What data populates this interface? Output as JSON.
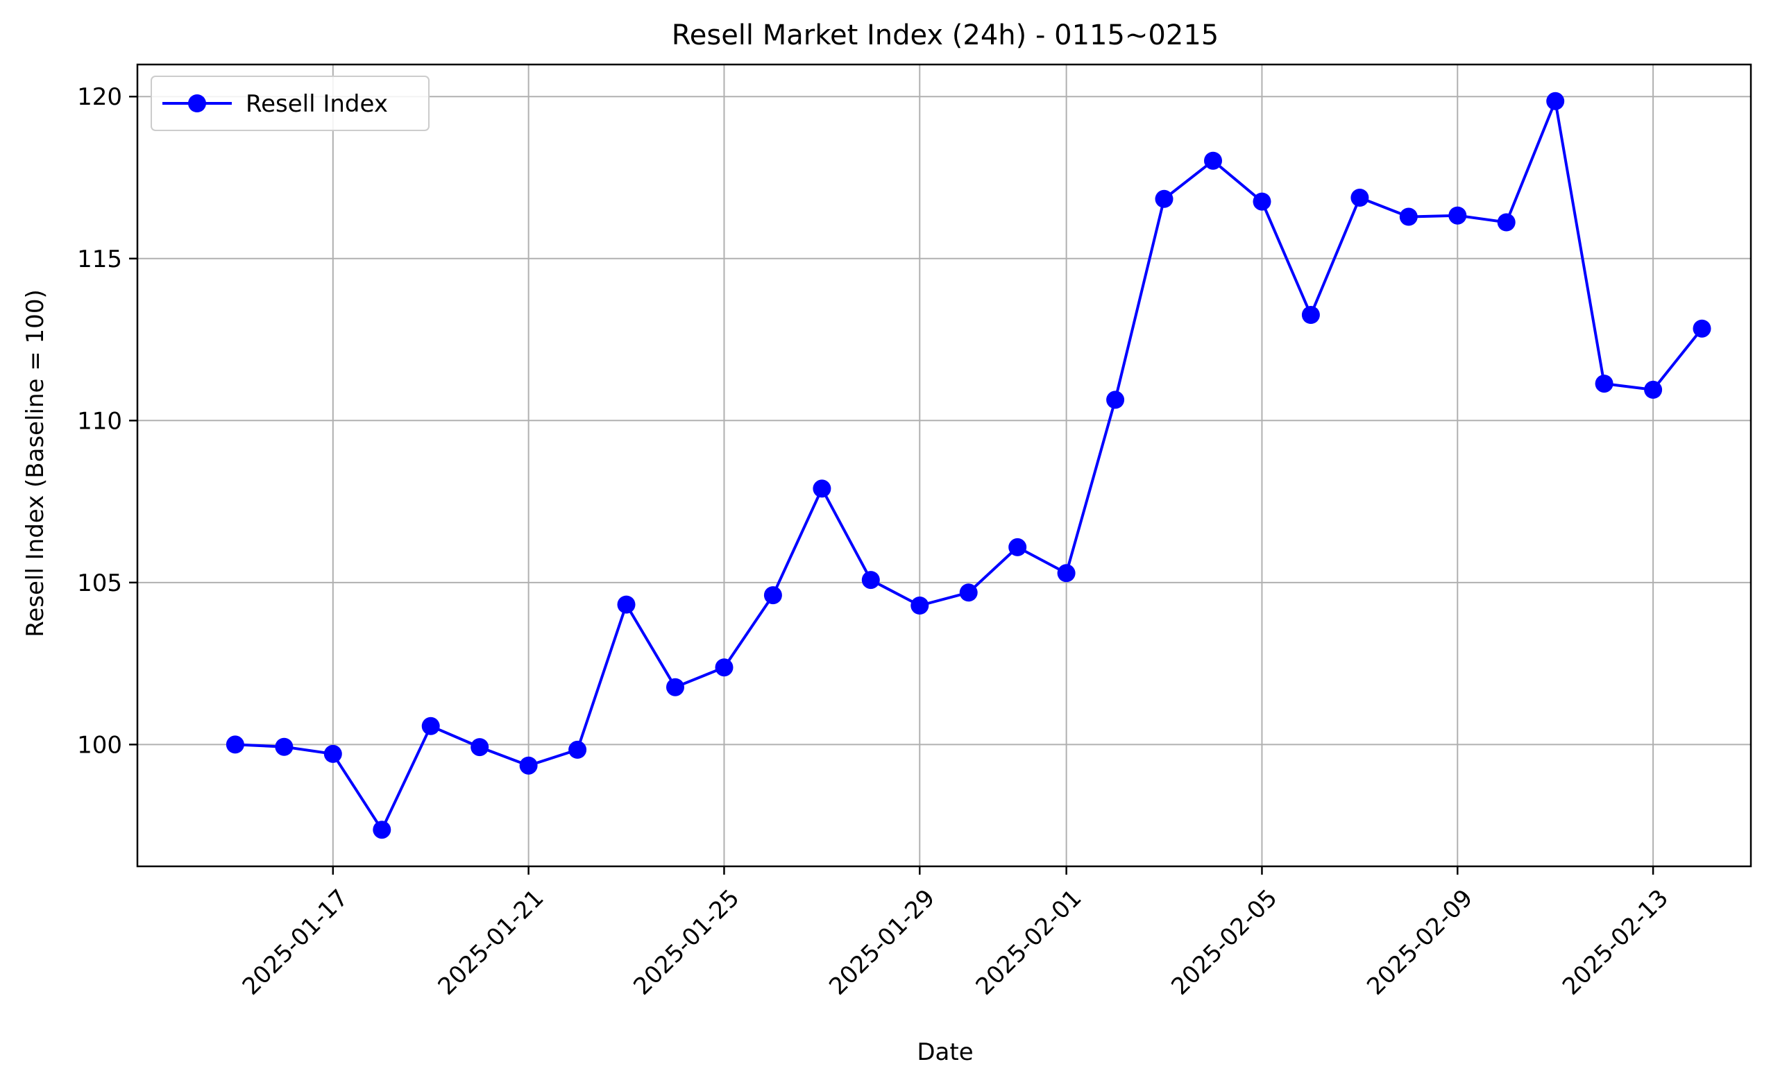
{
  "chart_data": {
    "type": "line",
    "title": "Resell Market Index (24h) - 0115~0215",
    "xlabel": "Date",
    "ylabel": "Resell Index (Baseline = 100)",
    "x": [
      "2025-01-15",
      "2025-01-16",
      "2025-01-17",
      "2025-01-18",
      "2025-01-19",
      "2025-01-20",
      "2025-01-21",
      "2025-01-22",
      "2025-01-23",
      "2025-01-24",
      "2025-01-25",
      "2025-01-26",
      "2025-01-27",
      "2025-01-28",
      "2025-01-29",
      "2025-01-30",
      "2025-01-31",
      "2025-02-01",
      "2025-02-02",
      "2025-02-03",
      "2025-02-04",
      "2025-02-05",
      "2025-02-06",
      "2025-02-07",
      "2025-02-08",
      "2025-02-09",
      "2025-02-10",
      "2025-02-11",
      "2025-02-12",
      "2025-02-13",
      "2025-02-14"
    ],
    "series": [
      {
        "name": "Resell Index",
        "color": "#0000ff",
        "marker": "circle",
        "values": [
          100.0,
          99.93,
          99.71,
          97.37,
          100.57,
          99.92,
          99.35,
          99.84,
          104.32,
          101.77,
          102.38,
          104.61,
          107.9,
          105.08,
          104.29,
          104.69,
          106.09,
          105.29,
          110.64,
          116.84,
          118.02,
          116.76,
          113.26,
          116.88,
          116.29,
          116.33,
          116.12,
          119.86,
          111.14,
          110.95,
          112.84
        ]
      }
    ],
    "x_ticks": [
      "2025-01-17",
      "2025-01-21",
      "2025-01-25",
      "2025-01-29",
      "2025-02-01",
      "2025-02-05",
      "2025-02-09",
      "2025-02-13"
    ],
    "y_ticks": [
      100,
      105,
      110,
      115,
      120
    ],
    "xlim": [
      "2025-01-13",
      "2025-02-15"
    ],
    "ylim": [
      96.24,
      120.99
    ],
    "grid": true,
    "legend_position": "top-left"
  }
}
